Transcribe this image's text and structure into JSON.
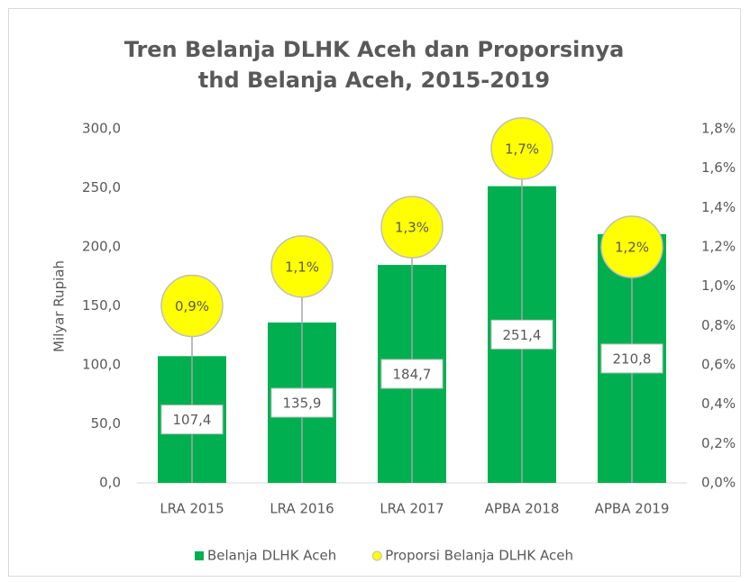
{
  "chart_data": {
    "type": "bar",
    "title": "Tren Belanja DLHK Aceh dan Proporsinya thd Belanja Aceh, 2015-2019",
    "ylabel": "Milyar Rupiah",
    "categories": [
      "LRA 2015",
      "LRA 2016",
      "LRA 2017",
      "APBA 2018",
      "APBA 2019"
    ],
    "series": [
      {
        "name": "Belanja DLHK Aceh",
        "color": "#00b050",
        "values": [
          107.4,
          135.9,
          184.7,
          251.4,
          210.8
        ],
        "value_labels": [
          "107,4",
          "135,9",
          "184,7",
          "251,4",
          "210,8"
        ]
      },
      {
        "name": "Proporsi Belanja DLHK Aceh",
        "type": "scatter",
        "axis": "y2",
        "color": "#ffff00",
        "values": [
          0.9,
          1.1,
          1.3,
          1.7,
          1.2
        ],
        "value_labels": [
          "0,9%",
          "1,1%",
          "1,3%",
          "1,7%",
          "1,2%"
        ]
      }
    ],
    "ylim": [
      0,
      300
    ],
    "yticks": [
      {
        "value": 0,
        "label": "0,0"
      },
      {
        "value": 50,
        "label": "50,0"
      },
      {
        "value": 100,
        "label": "100,0"
      },
      {
        "value": 150,
        "label": "150,0"
      },
      {
        "value": 200,
        "label": "200,0"
      },
      {
        "value": 250,
        "label": "250,0"
      },
      {
        "value": 300,
        "label": "300,0"
      }
    ],
    "y2lim": [
      0,
      1.8
    ],
    "y2ticks": [
      {
        "value": 0,
        "label": "0,0%"
      },
      {
        "value": 0.2,
        "label": "0,2%"
      },
      {
        "value": 0.4,
        "label": "0,4%"
      },
      {
        "value": 0.6,
        "label": "0,6%"
      },
      {
        "value": 0.8,
        "label": "0,8%"
      },
      {
        "value": 1.0,
        "label": "1,0%"
      },
      {
        "value": 1.2,
        "label": "1,2%"
      },
      {
        "value": 1.4,
        "label": "1,4%"
      },
      {
        "value": 1.6,
        "label": "1,6%"
      },
      {
        "value": 1.8,
        "label": "1,8%"
      }
    ],
    "legend": "bottom"
  }
}
